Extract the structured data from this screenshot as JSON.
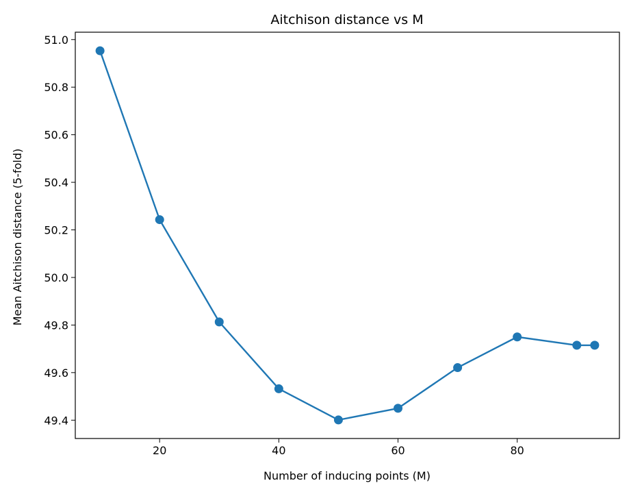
{
  "chart_data": {
    "type": "line",
    "title": "Aitchison distance vs M",
    "xlabel": "Number of inducing points (M)",
    "ylabel": "Mean Aitchison distance (5-fold)",
    "xlim": [
      5.85,
      97.15
    ],
    "ylim": [
      49.323,
      51.031
    ],
    "x_ticks": [
      20,
      40,
      60,
      80
    ],
    "x_tick_labels": [
      "20",
      "40",
      "60",
      "80"
    ],
    "y_ticks": [
      49.4,
      49.6,
      49.8,
      50.0,
      50.2,
      50.4,
      50.6,
      50.8,
      51.0
    ],
    "y_tick_labels": [
      "49.4",
      "49.6",
      "49.8",
      "50.0",
      "50.2",
      "50.4",
      "50.6",
      "50.8",
      "51.0"
    ],
    "grid": false,
    "series": [
      {
        "color": "#1f77b4",
        "marker": "circle",
        "x": [
          10,
          20,
          30,
          40,
          50,
          60,
          70,
          80,
          90,
          93
        ],
        "y": [
          50.953,
          50.243,
          49.813,
          49.532,
          49.401,
          49.45,
          49.621,
          49.75,
          49.715,
          49.715
        ]
      }
    ]
  }
}
